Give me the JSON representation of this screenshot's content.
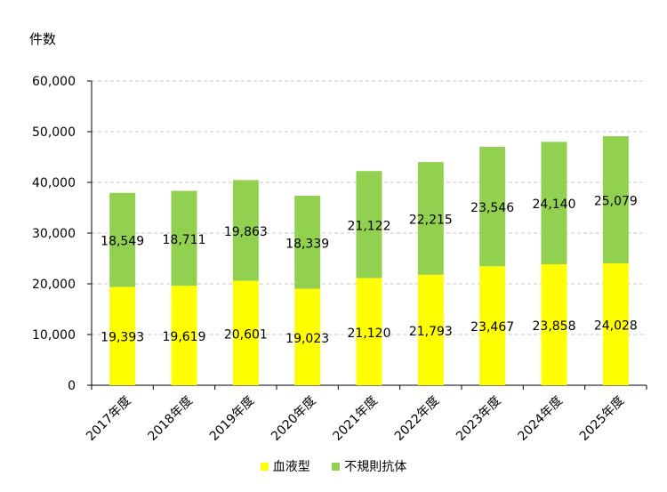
{
  "chart_data": {
    "type": "bar",
    "stacked": true,
    "ylabel": "件数",
    "ylim": [
      0,
      60000
    ],
    "yticks": [
      0,
      10000,
      20000,
      30000,
      40000,
      50000,
      60000
    ],
    "ytick_labels": [
      "0",
      "10,000",
      "20,000",
      "30,000",
      "40,000",
      "50,000",
      "60,000"
    ],
    "grid": true,
    "legend_position": "bottom",
    "categories": [
      "2017年度",
      "2018年度",
      "2019年度",
      "2020年度",
      "2021年度",
      "2022年度",
      "2023年度",
      "2024年度",
      "2025年度"
    ],
    "series": [
      {
        "name": "血液型",
        "color": "#ffff00",
        "values": [
          19393,
          19619,
          20601,
          19023,
          21120,
          21793,
          23467,
          23858,
          24028
        ],
        "labels": [
          "19,393",
          "19,619",
          "20,601",
          "19,023",
          "21,120",
          "21,793",
          "23,467",
          "23,858",
          "24,028"
        ]
      },
      {
        "name": "不規則抗体",
        "color": "#92d050",
        "values": [
          18549,
          18711,
          19863,
          18339,
          21122,
          22215,
          23546,
          24140,
          25079
        ],
        "labels": [
          "18,549",
          "18,711",
          "19,863",
          "18,339",
          "21,122",
          "22,215",
          "23,546",
          "24,140",
          "25,079"
        ]
      }
    ]
  }
}
